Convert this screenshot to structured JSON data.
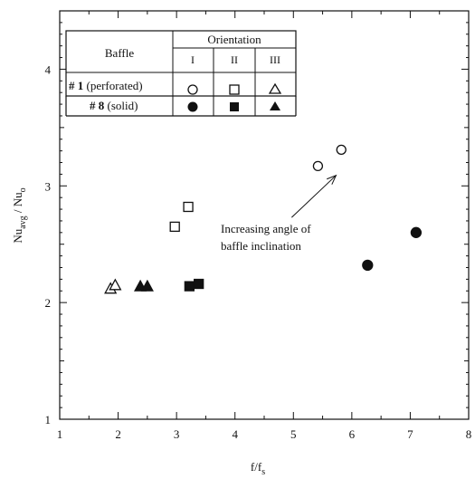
{
  "chart_data": {
    "type": "scatter",
    "xlabel": "f/f",
    "xlabel_sub": "s",
    "ylabel": "Nu",
    "ylabel_sub1": "avg",
    "ylabel_mid": " / Nu",
    "ylabel_sub2": "o",
    "xlim": [
      1,
      8
    ],
    "ylim": [
      1,
      4.5
    ],
    "xticks": [
      "1",
      "2",
      "3",
      "4",
      "5",
      "6",
      "7",
      "8"
    ],
    "yticks": [
      "1",
      "2",
      "3",
      "4"
    ],
    "grid": false,
    "series": [
      {
        "name": "# 1 (perforated), I",
        "marker": "circle",
        "fill": "open",
        "points": [
          [
            5.42,
            3.17
          ],
          [
            5.82,
            3.31
          ]
        ]
      },
      {
        "name": "# 1 (perforated), II",
        "marker": "square",
        "fill": "open",
        "points": [
          [
            2.97,
            2.65
          ],
          [
            3.2,
            2.82
          ]
        ]
      },
      {
        "name": "# 1 (perforated), III",
        "marker": "triangle",
        "fill": "open",
        "points": [
          [
            1.87,
            2.12
          ],
          [
            1.95,
            2.15
          ]
        ]
      },
      {
        "name": "# 8 (solid), I",
        "marker": "circle",
        "fill": "solid",
        "points": [
          [
            6.27,
            2.32
          ],
          [
            7.1,
            2.6
          ]
        ]
      },
      {
        "name": "# 8 (solid), II",
        "marker": "square",
        "fill": "solid",
        "points": [
          [
            3.22,
            2.14
          ],
          [
            3.38,
            2.16
          ]
        ]
      },
      {
        "name": "# 8 (solid), III",
        "marker": "triangle",
        "fill": "solid",
        "points": [
          [
            2.38,
            2.14
          ],
          [
            2.5,
            2.14
          ]
        ]
      }
    ],
    "annotation": {
      "line1": "Increasing angle of",
      "line2": "baffle inclination",
      "arrow_from": [
        4.97,
        2.73
      ],
      "arrow_to": [
        5.73,
        3.09
      ]
    },
    "legend": {
      "placement": "top-left",
      "col_header": "Baffle",
      "group_header": "Orientation",
      "orientations": [
        "I",
        "II",
        "III"
      ],
      "row1_num": "# 1",
      "row1_text": " (perforated)",
      "row2_num": "# 8",
      "row2_text": " (solid)"
    }
  }
}
